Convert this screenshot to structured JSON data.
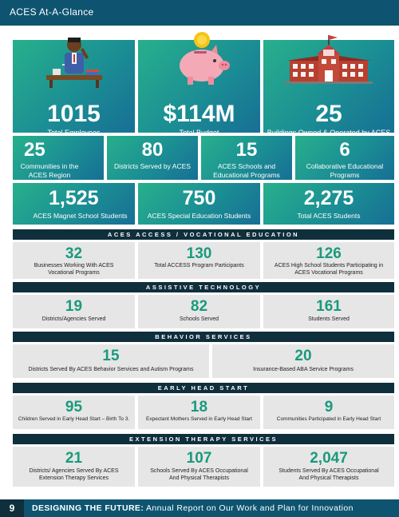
{
  "header": {
    "title": "ACES At-A-Glance"
  },
  "hero": [
    {
      "value": "1015",
      "label": "Total Employees"
    },
    {
      "value": "$114M",
      "label": "Total Budget"
    },
    {
      "value": "25",
      "label": "Buildings Owned & Operated by ACES"
    }
  ],
  "row2": [
    {
      "value": "25",
      "label": "Communities in the ACES Region"
    },
    {
      "value": "80",
      "label": "Districts Served by ACES"
    },
    {
      "value": "15",
      "label": "ACES Schools and Educational Programs"
    },
    {
      "value": "6",
      "label": "Collaborative Educational Programs"
    }
  ],
  "row3": [
    {
      "value": "1,525",
      "label": "ACES Magnet School Students"
    },
    {
      "value": "750",
      "label": "ACES Special Education Students"
    },
    {
      "value": "2,275",
      "label": "Total ACES Students"
    }
  ],
  "sections": {
    "access": {
      "title": "ACES ACCESS / VOCATIONAL EDUCATION",
      "stats": [
        {
          "value": "32",
          "label": "Businesses Working With ACES Vocational Programs"
        },
        {
          "value": "130",
          "label": "Total ACCESS Program Participants"
        },
        {
          "value": "126",
          "label": "ACES High School Students Participating in ACES Vocational Programs"
        }
      ]
    },
    "assistive": {
      "title": "ASSISTIVE TECHNOLOGY",
      "stats": [
        {
          "value": "19",
          "label": "Districts/Agencies Served"
        },
        {
          "value": "82",
          "label": "Schools Served"
        },
        {
          "value": "161",
          "label": "Students Served"
        }
      ]
    },
    "behavior": {
      "title": "BEHAVIOR SERVICES",
      "stats": [
        {
          "value": "15",
          "label": "Districts Served By ACES Behavior Services and Autism Programs"
        },
        {
          "value": "20",
          "label": "Insurance-Based ABA Service Programs"
        }
      ]
    },
    "headstart": {
      "title": "EARLY HEAD START",
      "stats": [
        {
          "value": "95",
          "label": "Children Served in Early Head Start – Birth To 3."
        },
        {
          "value": "18",
          "label": "Expectant Mothers Served in Early Head Start"
        },
        {
          "value": "9",
          "label": "Communities Participated in Early Head Start"
        }
      ]
    },
    "therapy": {
      "title": "EXTENSION THERAPY SERVICES",
      "stats": [
        {
          "value": "21",
          "label": "Districts/ Agencies Served By ACES Extension Therapy Services"
        },
        {
          "value": "107",
          "label": "Schools Served By ACES Occupational And Physical Therapists"
        },
        {
          "value": "2,047",
          "label": "Students Served By ACES Occupational And Physical Therapists"
        }
      ]
    }
  },
  "footer": {
    "page_number": "9",
    "title_bold": "DESIGNING THE FUTURE:",
    "title_rest": " Annual Report on Our Work and Plan for Innovation"
  },
  "colors": {
    "header": "#0e5470",
    "section_bar": "#0f2f3c",
    "stat_number": "#1a9a7d",
    "stat_bg": "#e6e6e6"
  },
  "icons": [
    "teacher-illustration",
    "piggy-bank-illustration",
    "school-building-illustration"
  ]
}
